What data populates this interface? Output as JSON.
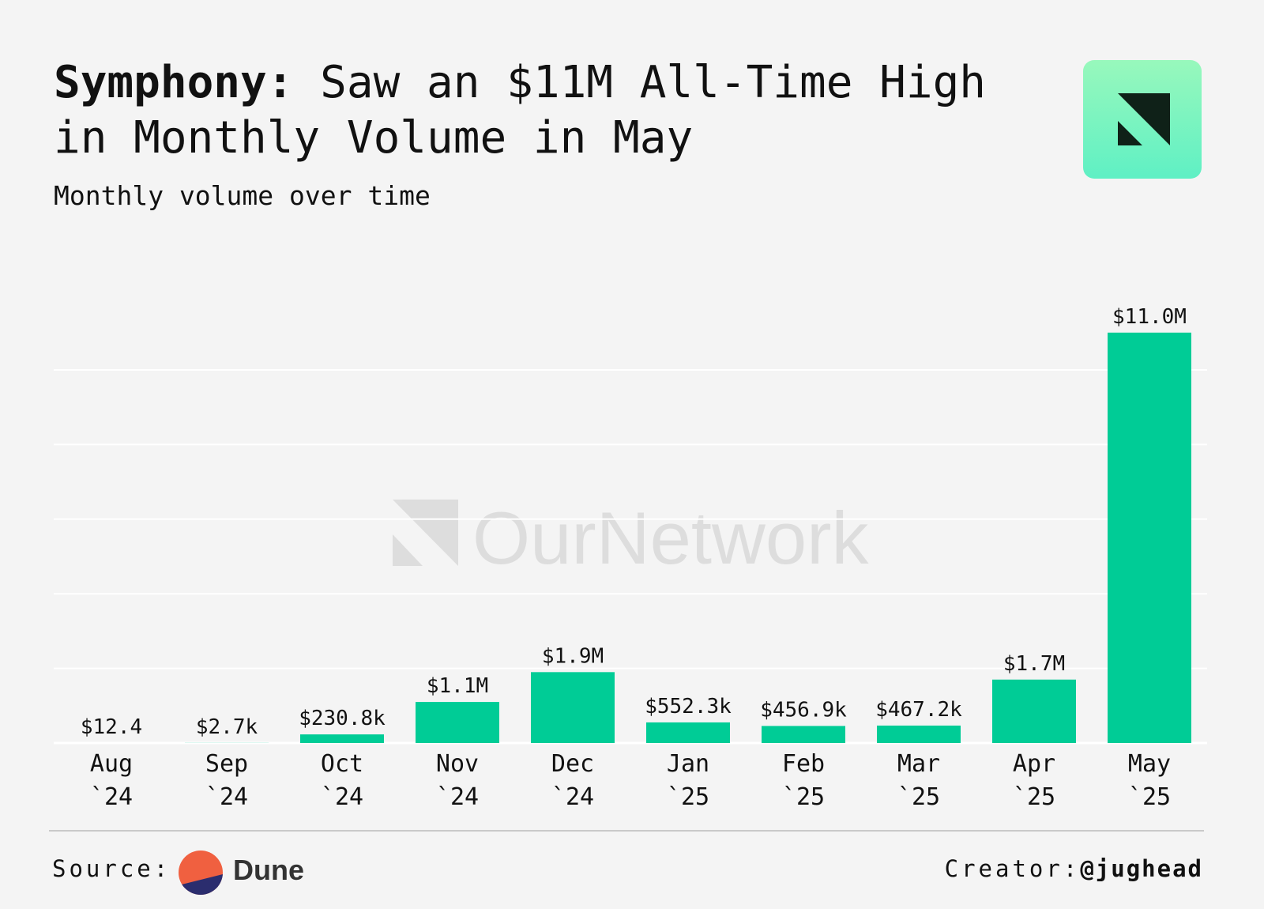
{
  "title": {
    "bold": "Symphony:",
    "rest": " Saw an $11M All-Time High in Monthly Volume in May"
  },
  "subtitle": "Monthly volume over time",
  "watermark": "OurNetwork",
  "footer": {
    "source_label": "Source:",
    "source_name": "Dune",
    "creator_label": "Creator:",
    "creator_handle": "@jughead"
  },
  "colors": {
    "bar": "#00cc96",
    "background": "#f4f4f4",
    "gridline": "#ffffff",
    "logo_gradient_top": "#98f8bc",
    "logo_gradient_bottom": "#5ff0c4"
  },
  "chart_data": {
    "type": "bar",
    "title": "Symphony: Saw an $11M All-Time High in Monthly Volume in May",
    "subtitle": "Monthly volume over time",
    "categories": [
      [
        "Aug",
        "`24"
      ],
      [
        "Sep",
        "`24"
      ],
      [
        "Oct",
        "`24"
      ],
      [
        "Nov",
        "`24"
      ],
      [
        "Dec",
        "`24"
      ],
      [
        "Jan",
        "`25"
      ],
      [
        "Feb",
        "`25"
      ],
      [
        "Mar",
        "`25"
      ],
      [
        "Apr",
        "`25"
      ],
      [
        "May",
        "`25"
      ]
    ],
    "values": [
      12.4,
      2700,
      230800,
      1100000,
      1900000,
      552300,
      456900,
      467200,
      1700000,
      11000000
    ],
    "data_labels": [
      "$12.4",
      "$2.7k",
      "$230.8k",
      "$1.1M",
      "$1.9M",
      "$552.3k",
      "$456.9k",
      "$467.2k",
      "$1.7M",
      "$11.0M"
    ],
    "ylim": [
      0,
      12500000
    ],
    "y_gridlines": [
      2000000,
      4000000,
      6000000,
      8000000,
      10000000
    ],
    "grid": true,
    "legend": "none",
    "xlabel": "",
    "ylabel": ""
  }
}
